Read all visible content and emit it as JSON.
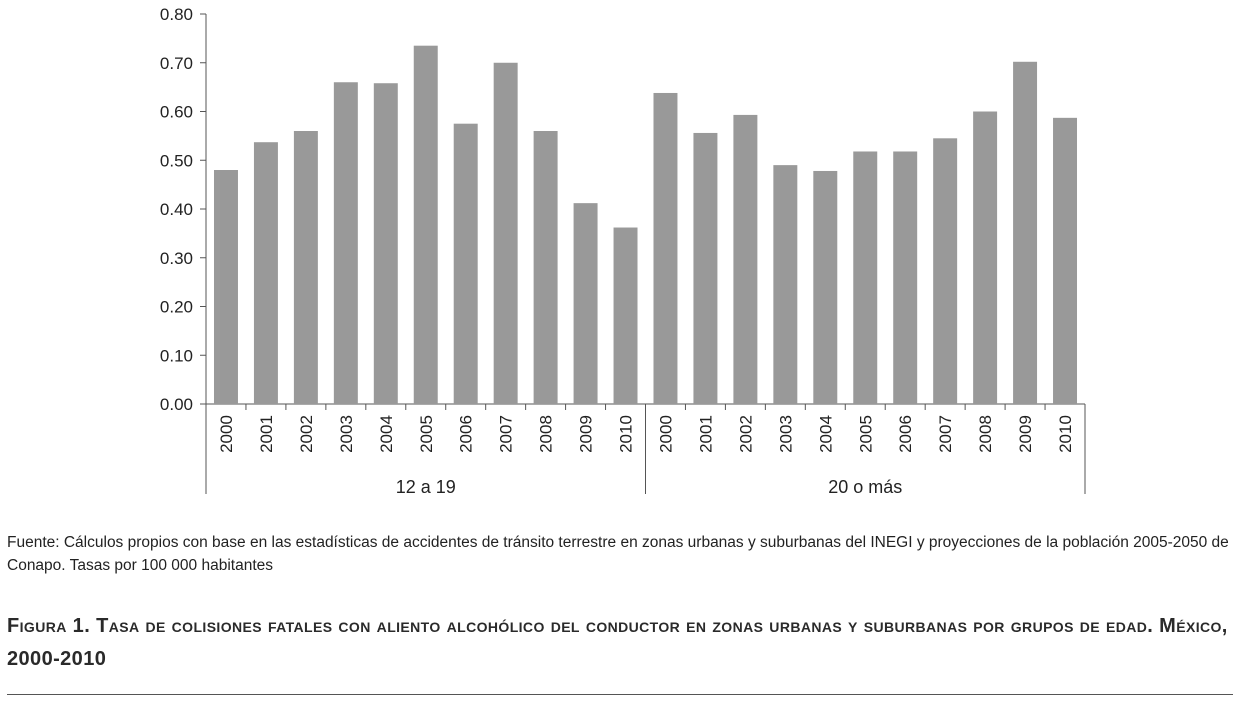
{
  "chart_data": {
    "type": "bar",
    "groups": [
      {
        "label": "12 a 19",
        "categories": [
          "2000",
          "2001",
          "2002",
          "2003",
          "2004",
          "2005",
          "2006",
          "2007",
          "2008",
          "2009",
          "2010"
        ],
        "values": [
          0.48,
          0.537,
          0.56,
          0.66,
          0.658,
          0.735,
          0.575,
          0.7,
          0.56,
          0.412,
          0.362
        ]
      },
      {
        "label": "20 o más",
        "categories": [
          "2000",
          "2001",
          "2002",
          "2003",
          "2004",
          "2005",
          "2006",
          "2007",
          "2008",
          "2009",
          "2010"
        ],
        "values": [
          0.638,
          0.556,
          0.593,
          0.49,
          0.478,
          0.518,
          0.518,
          0.545,
          0.6,
          0.702,
          0.587
        ]
      }
    ],
    "yticks": [
      "0.00",
      "0.10",
      "0.20",
      "0.30",
      "0.40",
      "0.50",
      "0.60",
      "0.70",
      "0.80"
    ],
    "ylim": [
      0,
      0.8
    ],
    "bar_color": "#999999",
    "axis_color": "#555555",
    "grid": false,
    "legend": "none"
  },
  "source_note": "Fuente: Cálculos propios con base en las estadísticas de accidentes de tránsito terrestre en zonas urbanas y suburbanas del INEGI y proyecciones de la población 2005-2050 de Conapo. Tasas por 100 000 habitantes",
  "caption": "Figura 1. Tasa de colisiones fatales con aliento alcohólico del conductor en zonas urbanas y suburbanas por grupos de edad. México, 2000-2010"
}
